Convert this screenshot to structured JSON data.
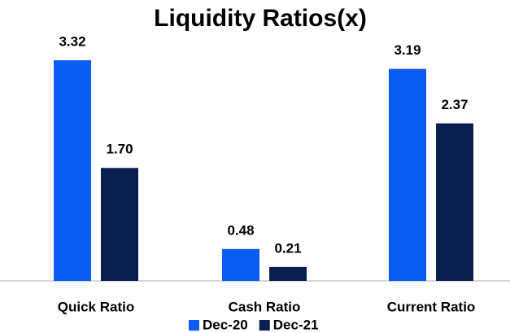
{
  "chart_data": {
    "type": "bar",
    "title": "Liquidity Ratios(x)",
    "categories": [
      "Quick Ratio",
      "Cash Ratio",
      "Current Ratio"
    ],
    "series": [
      {
        "name": "Dec-20",
        "color": "#0b5cf2",
        "values": [
          3.32,
          0.48,
          3.19
        ],
        "value_labels": [
          "3.32",
          "0.48",
          "3.19"
        ]
      },
      {
        "name": "Dec-21",
        "color": "#0a1f4f",
        "values": [
          1.7,
          0.21,
          2.37
        ],
        "value_labels": [
          "1.70",
          "0.21",
          "2.37"
        ]
      }
    ]
  }
}
